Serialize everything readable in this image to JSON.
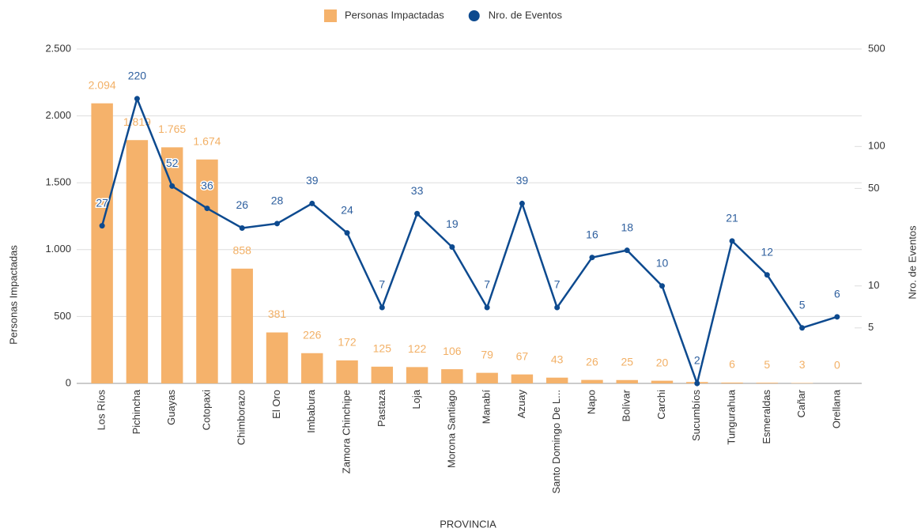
{
  "chart_data": {
    "type": "bar-line",
    "x_label": "PROVINCIA",
    "y_label": "Personas Impactadas",
    "y2_label": "Nro. de Eventos",
    "categories": [
      "Los Ríos",
      "Pichincha",
      "Guayas",
      "Cotopaxi",
      "Chimborazo",
      "El Oro",
      "Imbabura",
      "Zamora Chinchipe",
      "Pastaza",
      "Loja",
      "Morona Santiago",
      "Manabí",
      "Azuay",
      "Santo Domingo De L...",
      "Napo",
      "Bolívar",
      "Carchi",
      "Sucumbíos",
      "Tungurahua",
      "Esmeraldas",
      "Cañar",
      "Orellana"
    ],
    "series": [
      {
        "name": "Personas Impactadas",
        "type": "bar",
        "color": "#f5b26b",
        "label_color": "#f2b066",
        "values": [
          2094,
          1819,
          1765,
          1674,
          858,
          381,
          226,
          172,
          125,
          122,
          106,
          79,
          67,
          43,
          26,
          25,
          20,
          10,
          6,
          5,
          3,
          0
        ],
        "value_labels": [
          "2.094",
          "1.819",
          "1.765",
          "1.674",
          "858",
          "381",
          "226",
          "172",
          "125",
          "122",
          "106",
          "79",
          "67",
          "43",
          "26",
          "25",
          "20",
          null,
          "6",
          "5",
          "3",
          "0"
        ]
      },
      {
        "name": "Nro. de Eventos",
        "type": "line",
        "axis": "y2",
        "color": "#0d4a8f",
        "label_color": "#2e5f9e",
        "values": [
          27,
          220,
          52,
          36,
          26,
          28,
          39,
          24,
          7,
          33,
          19,
          7,
          39,
          7,
          16,
          18,
          10,
          2,
          21,
          12,
          5,
          6
        ]
      }
    ],
    "ylim": [
      0,
      2500
    ],
    "yticks": [
      0,
      500,
      {
        "value": 1000,
        "label": "1.000"
      },
      {
        "value": 1500,
        "label": "1.500"
      },
      {
        "value": 2000,
        "label": "2.000"
      },
      {
        "value": 2500,
        "label": "2.500"
      }
    ],
    "y2lim": [
      2,
      500
    ],
    "y2_log": true,
    "y2ticks": [
      5,
      10,
      50,
      100,
      500
    ],
    "grid": true,
    "legend": "top"
  }
}
